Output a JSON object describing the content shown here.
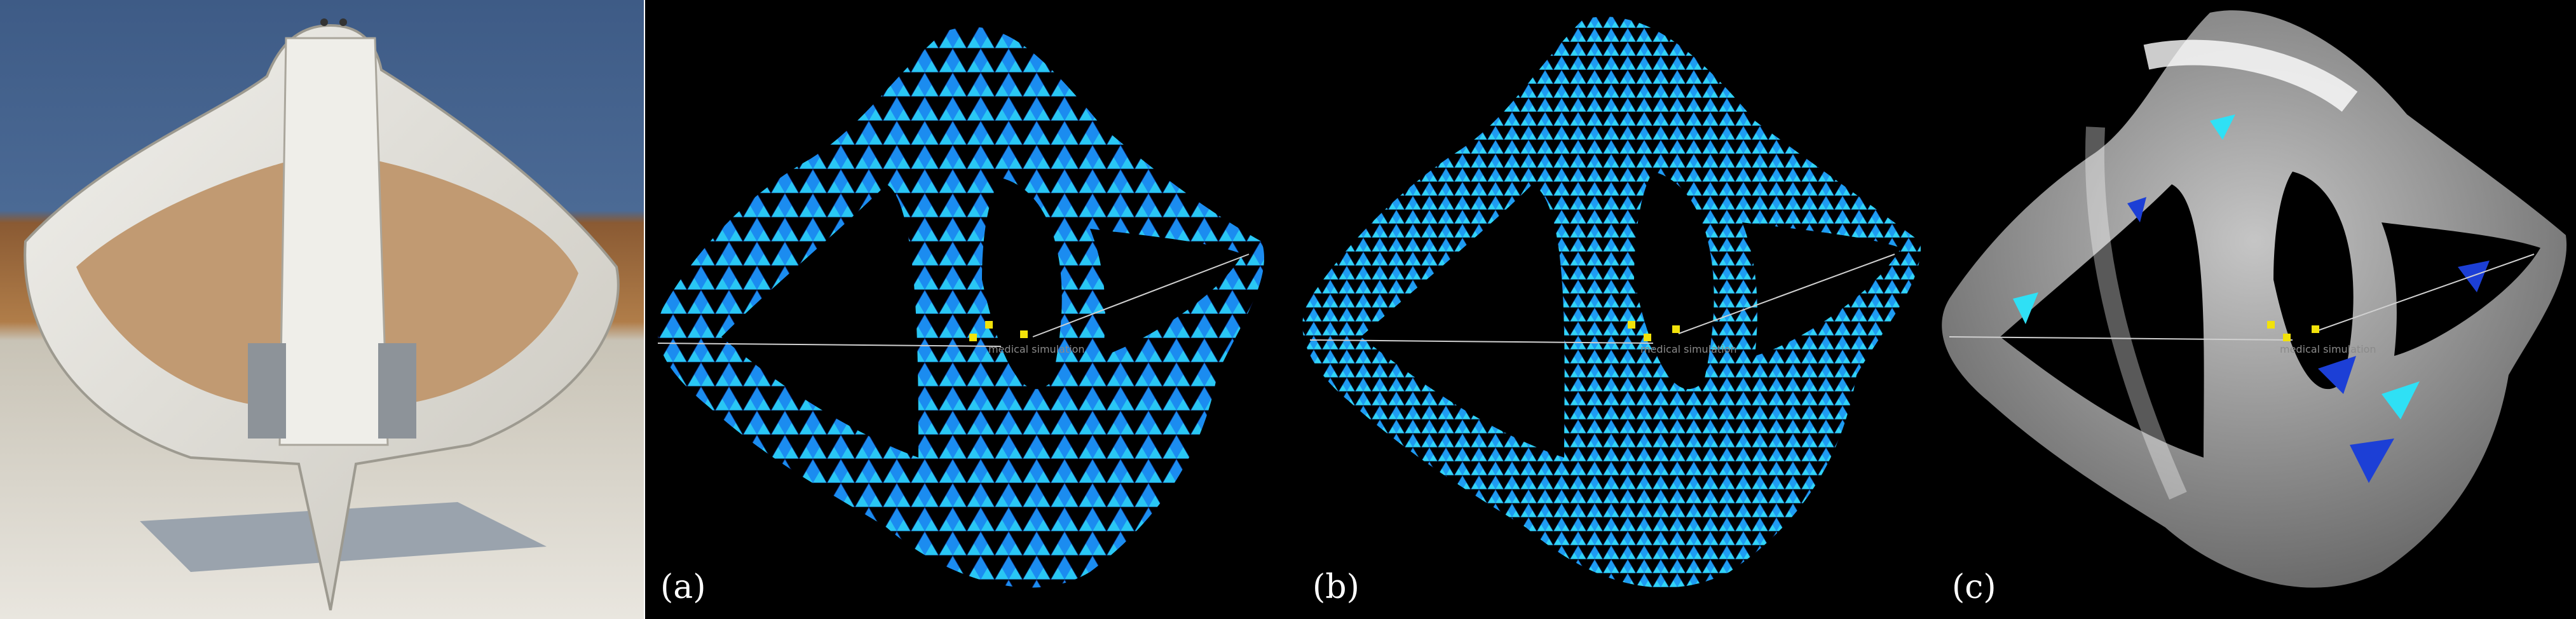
{
  "panels": [
    {
      "id": "photo",
      "label": ""
    },
    {
      "id": "a",
      "label": "(a)"
    },
    {
      "id": "b",
      "label": "(b)"
    },
    {
      "id": "c",
      "label": "(c)"
    }
  ],
  "colors": {
    "mesh_dark": "#1c3fd6",
    "mesh_mid": "#1b8cf0",
    "mesh_light": "#2fe0f5",
    "xray_gray": "#bdbdbd",
    "marker": "#f2e20a",
    "background": "#000000"
  },
  "overlay_caption": "medical simulation"
}
